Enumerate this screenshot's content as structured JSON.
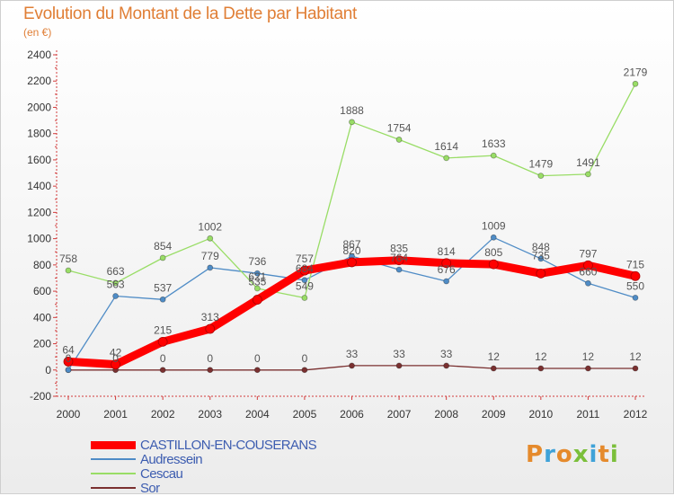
{
  "title": "Evolution du Montant de la Dette par Habitant",
  "subtitle": "(en €)",
  "logo": {
    "text": "Proxiti",
    "letters": [
      "P",
      "r",
      "o",
      "x",
      "i",
      "t",
      "i"
    ]
  },
  "chart_data": {
    "type": "line",
    "title": "Evolution du Montant de la Dette par Habitant",
    "subtitle": "(en €)",
    "xlabel": "",
    "ylabel": "",
    "ylim": [
      -200,
      2400
    ],
    "ytick_step": 200,
    "grid": false,
    "legend_position": "bottom-left",
    "x": [
      "2000",
      "2001",
      "2002",
      "2003",
      "2004",
      "2005",
      "2006",
      "2007",
      "2008",
      "2009",
      "2010",
      "2011",
      "2012"
    ],
    "series": [
      {
        "name": "CASTILLON-EN-COUSERANS",
        "color": "#ff0000",
        "values": [
          64,
          42,
          215,
          313,
          535,
          757,
          820,
          835,
          814,
          805,
          735,
          797,
          715
        ],
        "labels": [
          "64",
          "42",
          "215",
          "313",
          "",
          "757",
          "820",
          "835",
          "814",
          "805",
          "",
          "797",
          "715"
        ]
      },
      {
        "name": "Audressein",
        "color": "#4f8cc6",
        "values": [
          0,
          563,
          537,
          779,
          736,
          684,
          867,
          764,
          676,
          1009,
          848,
          660,
          550
        ],
        "labels": [
          "",
          "563",
          "537",
          "779",
          "736",
          "684",
          "867",
          "764",
          "676",
          "1009",
          "848",
          "660",
          "550"
        ]
      },
      {
        "name": "Cescau",
        "color": "#99dd66",
        "values": [
          758,
          663,
          854,
          1002,
          621,
          549,
          1888,
          1754,
          1614,
          1633,
          1479,
          1491,
          2179
        ],
        "labels": [
          "758",
          "663",
          "854",
          "1002",
          "621",
          "549",
          "1888",
          "1754",
          "1614",
          "1633",
          "1479",
          "1491",
          "2179"
        ]
      },
      {
        "name": "Sor",
        "color": "#7a3030",
        "values": [
          0,
          0,
          0,
          0,
          0,
          0,
          33,
          33,
          33,
          12,
          12,
          12,
          12
        ],
        "labels": [
          "0",
          "0",
          "0",
          "0",
          "0",
          "0",
          "33",
          "33",
          "33",
          "12",
          "12",
          "12",
          "12"
        ]
      }
    ],
    "extra_labels": [
      "535",
      "735"
    ]
  }
}
